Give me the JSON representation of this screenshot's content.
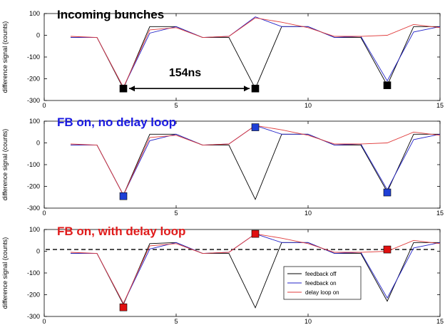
{
  "colors": {
    "feedback_off": "#000000",
    "feedback_on": "#2323c8",
    "delay_loop_on": "#e03c3c",
    "marker_black": "#000000",
    "marker_blue": "#1f3fd6",
    "marker_red": "#e01010",
    "title_black": "#000000",
    "title_blue": "#1a1ae0",
    "title_red": "#e01a1a"
  },
  "chart_data": [
    {
      "type": "line",
      "title": "Incoming bunches",
      "title_color": "#000000",
      "ylabel": "difference signal (counts)",
      "xlim": [
        0,
        15
      ],
      "ylim": [
        -300,
        100
      ],
      "xticks": [
        0,
        5,
        10,
        15
      ],
      "yticks": [
        100,
        0,
        -100,
        -200,
        -300
      ],
      "x": [
        1,
        2,
        3,
        4,
        5,
        6,
        7,
        8,
        9,
        10,
        11,
        12,
        13,
        14,
        15
      ],
      "series": [
        {
          "name": "feedback off",
          "color_key": "feedback_off",
          "values": [
            -10,
            -10,
            -245,
            40,
            40,
            -10,
            -10,
            -245,
            40,
            40,
            -10,
            -10,
            -230,
            40,
            40
          ]
        },
        {
          "name": "feedback on",
          "color_key": "feedback_on",
          "values": [
            -10,
            -10,
            -240,
            10,
            40,
            -10,
            -5,
            85,
            40,
            40,
            -10,
            -5,
            -210,
            15,
            40
          ]
        },
        {
          "name": "delay loop on",
          "color_key": "delay_loop_on",
          "values": [
            -5,
            -10,
            -240,
            25,
            35,
            -10,
            -5,
            80,
            60,
            35,
            -5,
            -5,
            0,
            50,
            35
          ]
        }
      ],
      "markers": [
        {
          "x": 3,
          "y": -245,
          "color_key": "marker_black"
        },
        {
          "x": 8,
          "y": -245,
          "color_key": "marker_black"
        },
        {
          "x": 13,
          "y": -230,
          "color_key": "marker_black"
        }
      ],
      "annotation": {
        "text": "154ns",
        "x_from": 3,
        "x_to": 8,
        "y": -245
      }
    },
    {
      "type": "line",
      "title": "FB on, no delay loop",
      "title_color": "#1a1ae0",
      "ylabel": "difference signal (counts)",
      "xlim": [
        0,
        15
      ],
      "ylim": [
        -300,
        100
      ],
      "xticks": [
        0,
        5,
        10,
        15
      ],
      "yticks": [
        100,
        0,
        -100,
        -200,
        -300
      ],
      "x": [
        1,
        2,
        3,
        4,
        5,
        6,
        7,
        8,
        9,
        10,
        11,
        12,
        13,
        14,
        15
      ],
      "series": [
        {
          "name": "feedback off",
          "color_key": "feedback_off",
          "values": [
            -10,
            -10,
            -240,
            40,
            40,
            -10,
            -10,
            -260,
            40,
            40,
            -10,
            -10,
            -225,
            40,
            40
          ]
        },
        {
          "name": "feedback on",
          "color_key": "feedback_on",
          "values": [
            -10,
            -10,
            -240,
            10,
            40,
            -10,
            -5,
            80,
            40,
            40,
            -10,
            -5,
            -215,
            15,
            40
          ]
        },
        {
          "name": "delay loop on",
          "color_key": "delay_loop_on",
          "values": [
            -5,
            -10,
            -240,
            25,
            35,
            -10,
            -5,
            80,
            60,
            35,
            -5,
            -5,
            0,
            50,
            35
          ]
        }
      ],
      "markers": [
        {
          "x": 3,
          "y": -245,
          "color_key": "marker_blue"
        },
        {
          "x": 8,
          "y": 72,
          "color_key": "marker_blue"
        },
        {
          "x": 13,
          "y": -228,
          "color_key": "marker_blue"
        }
      ]
    },
    {
      "type": "line",
      "title": "FB on, with delay loop",
      "title_color": "#e01a1a",
      "ylabel": "difference signal (counts)",
      "xlim": [
        0,
        15
      ],
      "ylim": [
        -300,
        100
      ],
      "xticks": [
        0,
        5,
        10,
        15
      ],
      "yticks": [
        100,
        0,
        -100,
        -200,
        -300
      ],
      "x": [
        1,
        2,
        3,
        4,
        5,
        6,
        7,
        8,
        9,
        10,
        11,
        12,
        13,
        14,
        15
      ],
      "series": [
        {
          "name": "feedback off",
          "color_key": "feedback_off",
          "values": [
            -10,
            -10,
            -245,
            35,
            40,
            -10,
            -10,
            -260,
            40,
            40,
            -10,
            -10,
            -230,
            40,
            40
          ]
        },
        {
          "name": "feedback on",
          "color_key": "feedback_on",
          "values": [
            -10,
            -10,
            -240,
            10,
            40,
            -10,
            -5,
            80,
            40,
            40,
            -10,
            -5,
            -215,
            15,
            40
          ]
        },
        {
          "name": "delay loop on",
          "color_key": "delay_loop_on",
          "values": [
            -5,
            -10,
            -240,
            25,
            35,
            -10,
            -5,
            80,
            60,
            35,
            -5,
            -5,
            0,
            50,
            35
          ]
        }
      ],
      "markers": [
        {
          "x": 3,
          "y": -258,
          "color_key": "marker_red"
        },
        {
          "x": 8,
          "y": 80,
          "color_key": "marker_red"
        },
        {
          "x": 13,
          "y": 8,
          "color_key": "marker_red"
        }
      ],
      "reference_line": {
        "y": 8,
        "style": "dashed"
      },
      "legend": {
        "placement": "bottom-right",
        "entries": [
          {
            "label": "feedback off",
            "color_key": "feedback_off"
          },
          {
            "label": "feedback on",
            "color_key": "feedback_on"
          },
          {
            "label": "delay loop on",
            "color_key": "delay_loop_on"
          }
        ]
      }
    }
  ]
}
